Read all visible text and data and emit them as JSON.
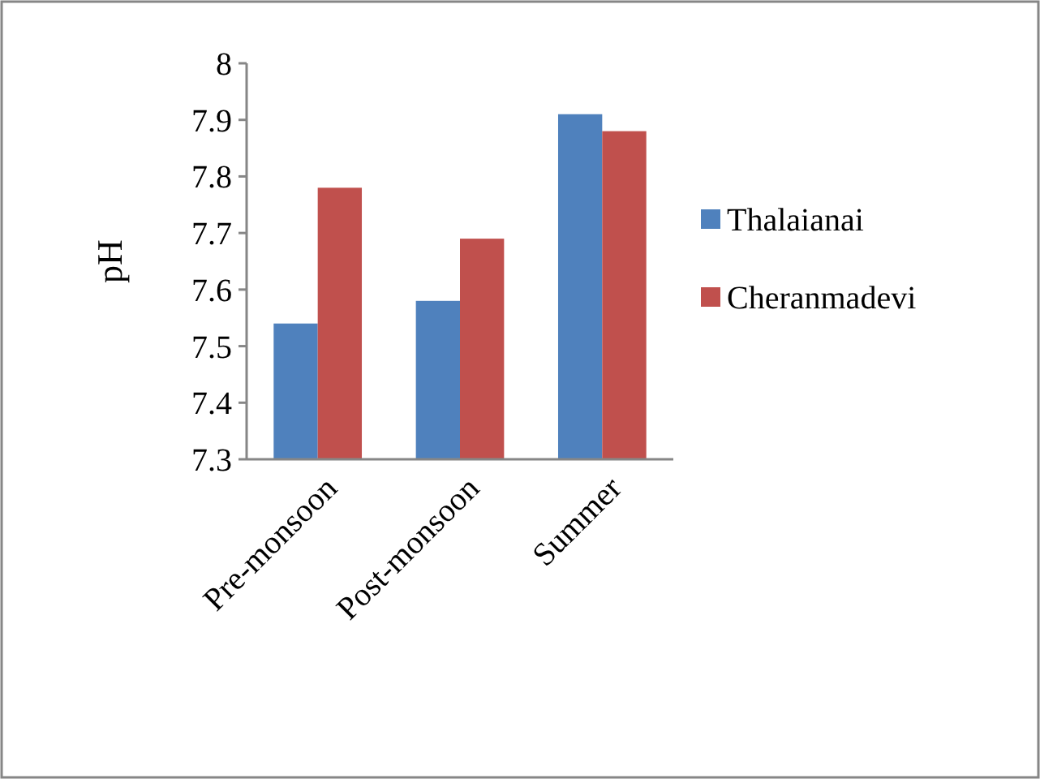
{
  "chart_data": {
    "type": "bar",
    "ylabel": "pH",
    "categories": [
      "Pre-monsoon",
      "Post-monsoon",
      "Summer"
    ],
    "series": [
      {
        "name": "Thalaianai",
        "color": "#4f81bd",
        "values": [
          7.54,
          7.58,
          7.91
        ]
      },
      {
        "name": "Cheranmadevi",
        "color": "#c0504d",
        "values": [
          7.78,
          7.69,
          7.88
        ]
      }
    ],
    "ylim": [
      7.3,
      8
    ],
    "yticks": [
      7.3,
      7.4,
      7.5,
      7.6,
      7.7,
      7.8,
      7.9,
      8
    ],
    "legend": "right",
    "grid": false
  }
}
